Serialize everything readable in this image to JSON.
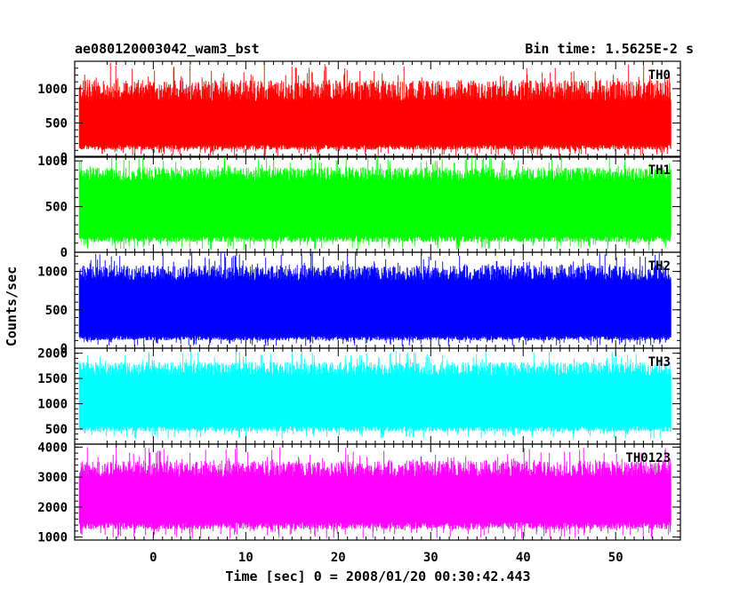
{
  "title_left": "ae080120003042_wam3_bst",
  "title_right": "Bin time: 1.5625E-2 s",
  "chart_data": {
    "type": "line",
    "xlabel": "Time [sec] 0 = 2008/01/20 00:30:42.443",
    "ylabel": "Counts/sec",
    "xlim": [
      -8.5,
      57
    ],
    "data_x_range": [
      -8,
      56
    ],
    "xticks": [
      0,
      10,
      20,
      30,
      40,
      50
    ],
    "grid": false,
    "panels": [
      {
        "name": "TH0",
        "color": "#ff0000",
        "ylim": [
          0,
          1400
        ],
        "yticks": [
          0,
          500,
          1000
        ],
        "baseline": 500,
        "fill_low": 180,
        "fill_high": 820,
        "spike_high": 1380,
        "dip_low": 20
      },
      {
        "name": "TH1",
        "color": "#00ff00",
        "ylim": [
          0,
          1050
        ],
        "yticks": [
          0,
          500,
          1000
        ],
        "baseline": 500,
        "fill_low": 180,
        "fill_high": 780,
        "spike_high": 1050,
        "dip_low": 20
      },
      {
        "name": "TH2",
        "color": "#0000ff",
        "ylim": [
          0,
          1250
        ],
        "yticks": [
          0,
          500,
          1000
        ],
        "baseline": 520,
        "fill_low": 160,
        "fill_high": 880,
        "spike_high": 1250,
        "dip_low": 30
      },
      {
        "name": "TH3",
        "color": "#00ffff",
        "ylim": [
          200,
          2100
        ],
        "yticks": [
          500,
          1000,
          1500,
          2000
        ],
        "baseline": 1050,
        "fill_low": 560,
        "fill_high": 1550,
        "spike_high": 2050,
        "dip_low": 300
      },
      {
        "name": "TH0123",
        "color": "#ff00ff",
        "ylim": [
          900,
          4100
        ],
        "yticks": [
          1000,
          2000,
          3000,
          4000
        ],
        "baseline": 2200,
        "fill_low": 1500,
        "fill_high": 3000,
        "spike_high": 4000,
        "dip_low": 950
      }
    ]
  }
}
